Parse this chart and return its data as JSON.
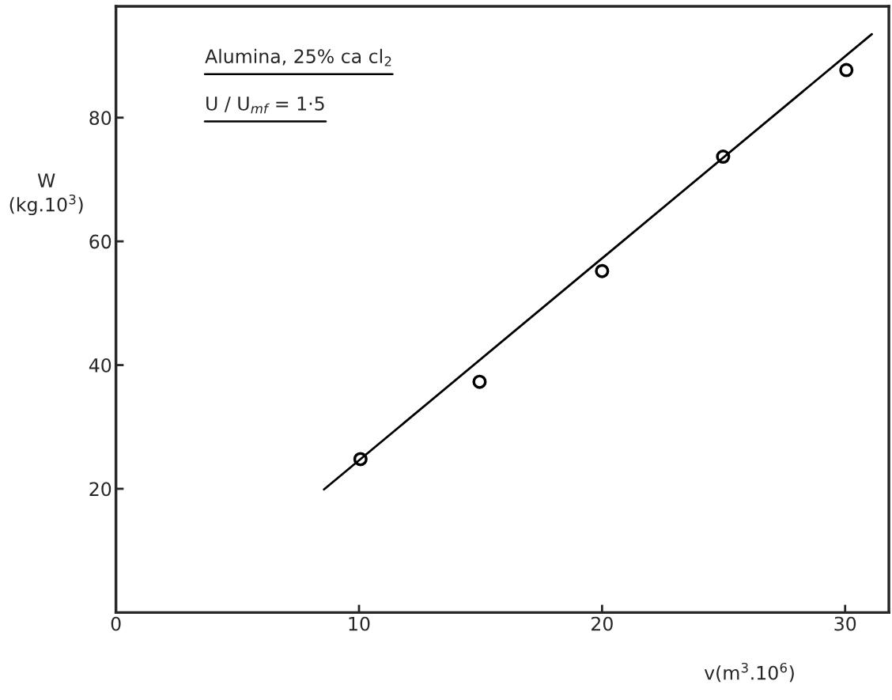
{
  "chart_data": {
    "type": "scatter",
    "xlabel": "v(m$^{3}$.10$^{6}$)",
    "ylabel": "W\n(kg.10$^{3}$)",
    "annotations": [
      "Alumina, 25% ca cl$_{2}$",
      "U / U$_{mf}$ = 1·5"
    ],
    "series": [
      {
        "color": "#000000",
        "marker": "circle",
        "x": [
          10.06,
          14.96,
          20.0,
          24.98,
          30.05
        ],
        "values": [
          24.8,
          37.3,
          55.2,
          73.7,
          87.7
        ]
      },
      {
        "type": "line",
        "color": "#000000",
        "marker": "none",
        "line_style": "solid",
        "x": [
          8.56,
          31.1
        ],
        "values": [
          19.9,
          93.5
        ]
      }
    ],
    "xlim": [
      0,
      31.8
    ],
    "ylim": [
      0,
      98
    ],
    "xticks": [
      0,
      10,
      20,
      30
    ],
    "yticks": [
      20,
      40,
      60,
      80
    ],
    "grid": false,
    "legend": false
  }
}
